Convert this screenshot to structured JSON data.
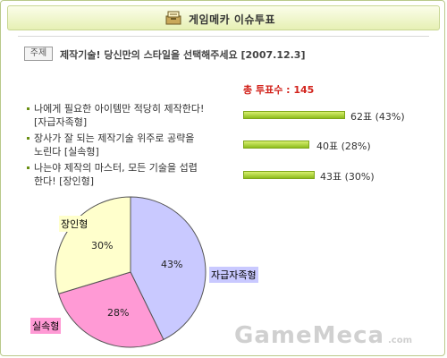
{
  "header": {
    "title": "게임메카 이슈투표",
    "icon": "ballot-box-icon"
  },
  "question": {
    "tag": "주제",
    "text": "제작기술! 당신만의 스타일을 선택해주세요 [2007.12.3]"
  },
  "total": "총 투표수 : 145",
  "options": [
    {
      "line1": "나에게 필요한 아이템만 적당히 제작한다!",
      "line2": "[자급자족형]",
      "result": "62표 (43%)"
    },
    {
      "line1": "장사가 잘 되는 제작기술 위주로 공략을",
      "line2": "노린다 [실속형]",
      "result": "40표 (28%)"
    },
    {
      "line1": "나는야 제작의 마스터, 모든 기술을 섭렵",
      "line2": "한다! [장인형]",
      "result": "43표 (30%)"
    }
  ],
  "chart_data": {
    "type": "pie",
    "categories": [
      "자급자족형",
      "실속형",
      "장인형"
    ],
    "values": [
      62,
      40,
      43
    ],
    "percent_labels": [
      "43%",
      "28%",
      "30%"
    ],
    "colors": [
      "#c9c9ff",
      "#ff9ad5",
      "#ffffcc"
    ]
  },
  "watermark": {
    "brand": "GameMeca",
    "suffix": ".com"
  }
}
